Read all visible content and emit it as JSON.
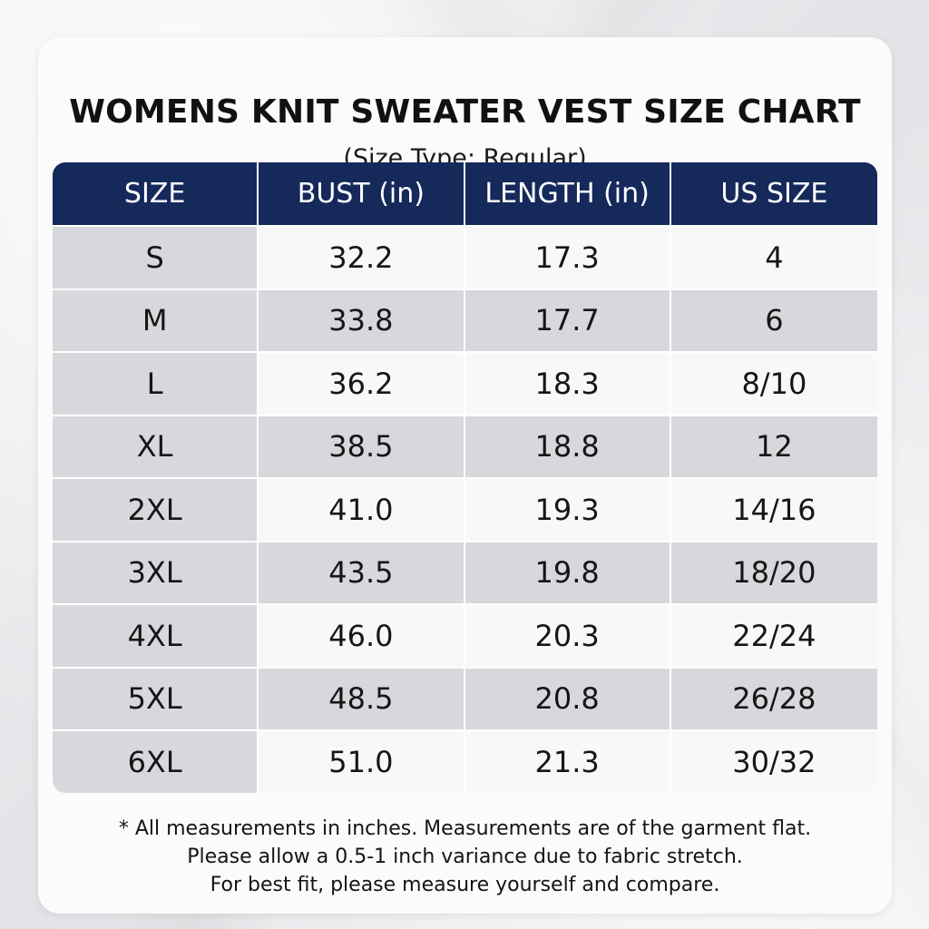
{
  "title": "WOMENS KNIT SWEATER VEST SIZE CHART",
  "subtitle": "(Size Type: Regular)",
  "table": {
    "headers": [
      "SIZE",
      "BUST (in)",
      "LENGTH (in)",
      "US SIZE"
    ],
    "rows": [
      [
        "S",
        "32.2",
        "17.3",
        "4"
      ],
      [
        "M",
        "33.8",
        "17.7",
        "6"
      ],
      [
        "L",
        "36.2",
        "18.3",
        "8/10"
      ],
      [
        "XL",
        "38.5",
        "18.8",
        "12"
      ],
      [
        "2XL",
        "41.0",
        "19.3",
        "14/16"
      ],
      [
        "3XL",
        "43.5",
        "19.8",
        "18/20"
      ],
      [
        "4XL",
        "46.0",
        "20.3",
        "22/24"
      ],
      [
        "5XL",
        "48.5",
        "20.8",
        "26/28"
      ],
      [
        "6XL",
        "51.0",
        "21.3",
        "30/32"
      ]
    ]
  },
  "notes": [
    "* All measurements in inches. Measurements are of the garment flat.",
    "Please allow a 0.5-1 inch variance due to fabric stretch.",
    "For best fit, please measure yourself and compare."
  ],
  "colors": {
    "header_bg": "#15295a",
    "row_light": "#f8f8f8",
    "row_dark": "#d6d8dc"
  }
}
